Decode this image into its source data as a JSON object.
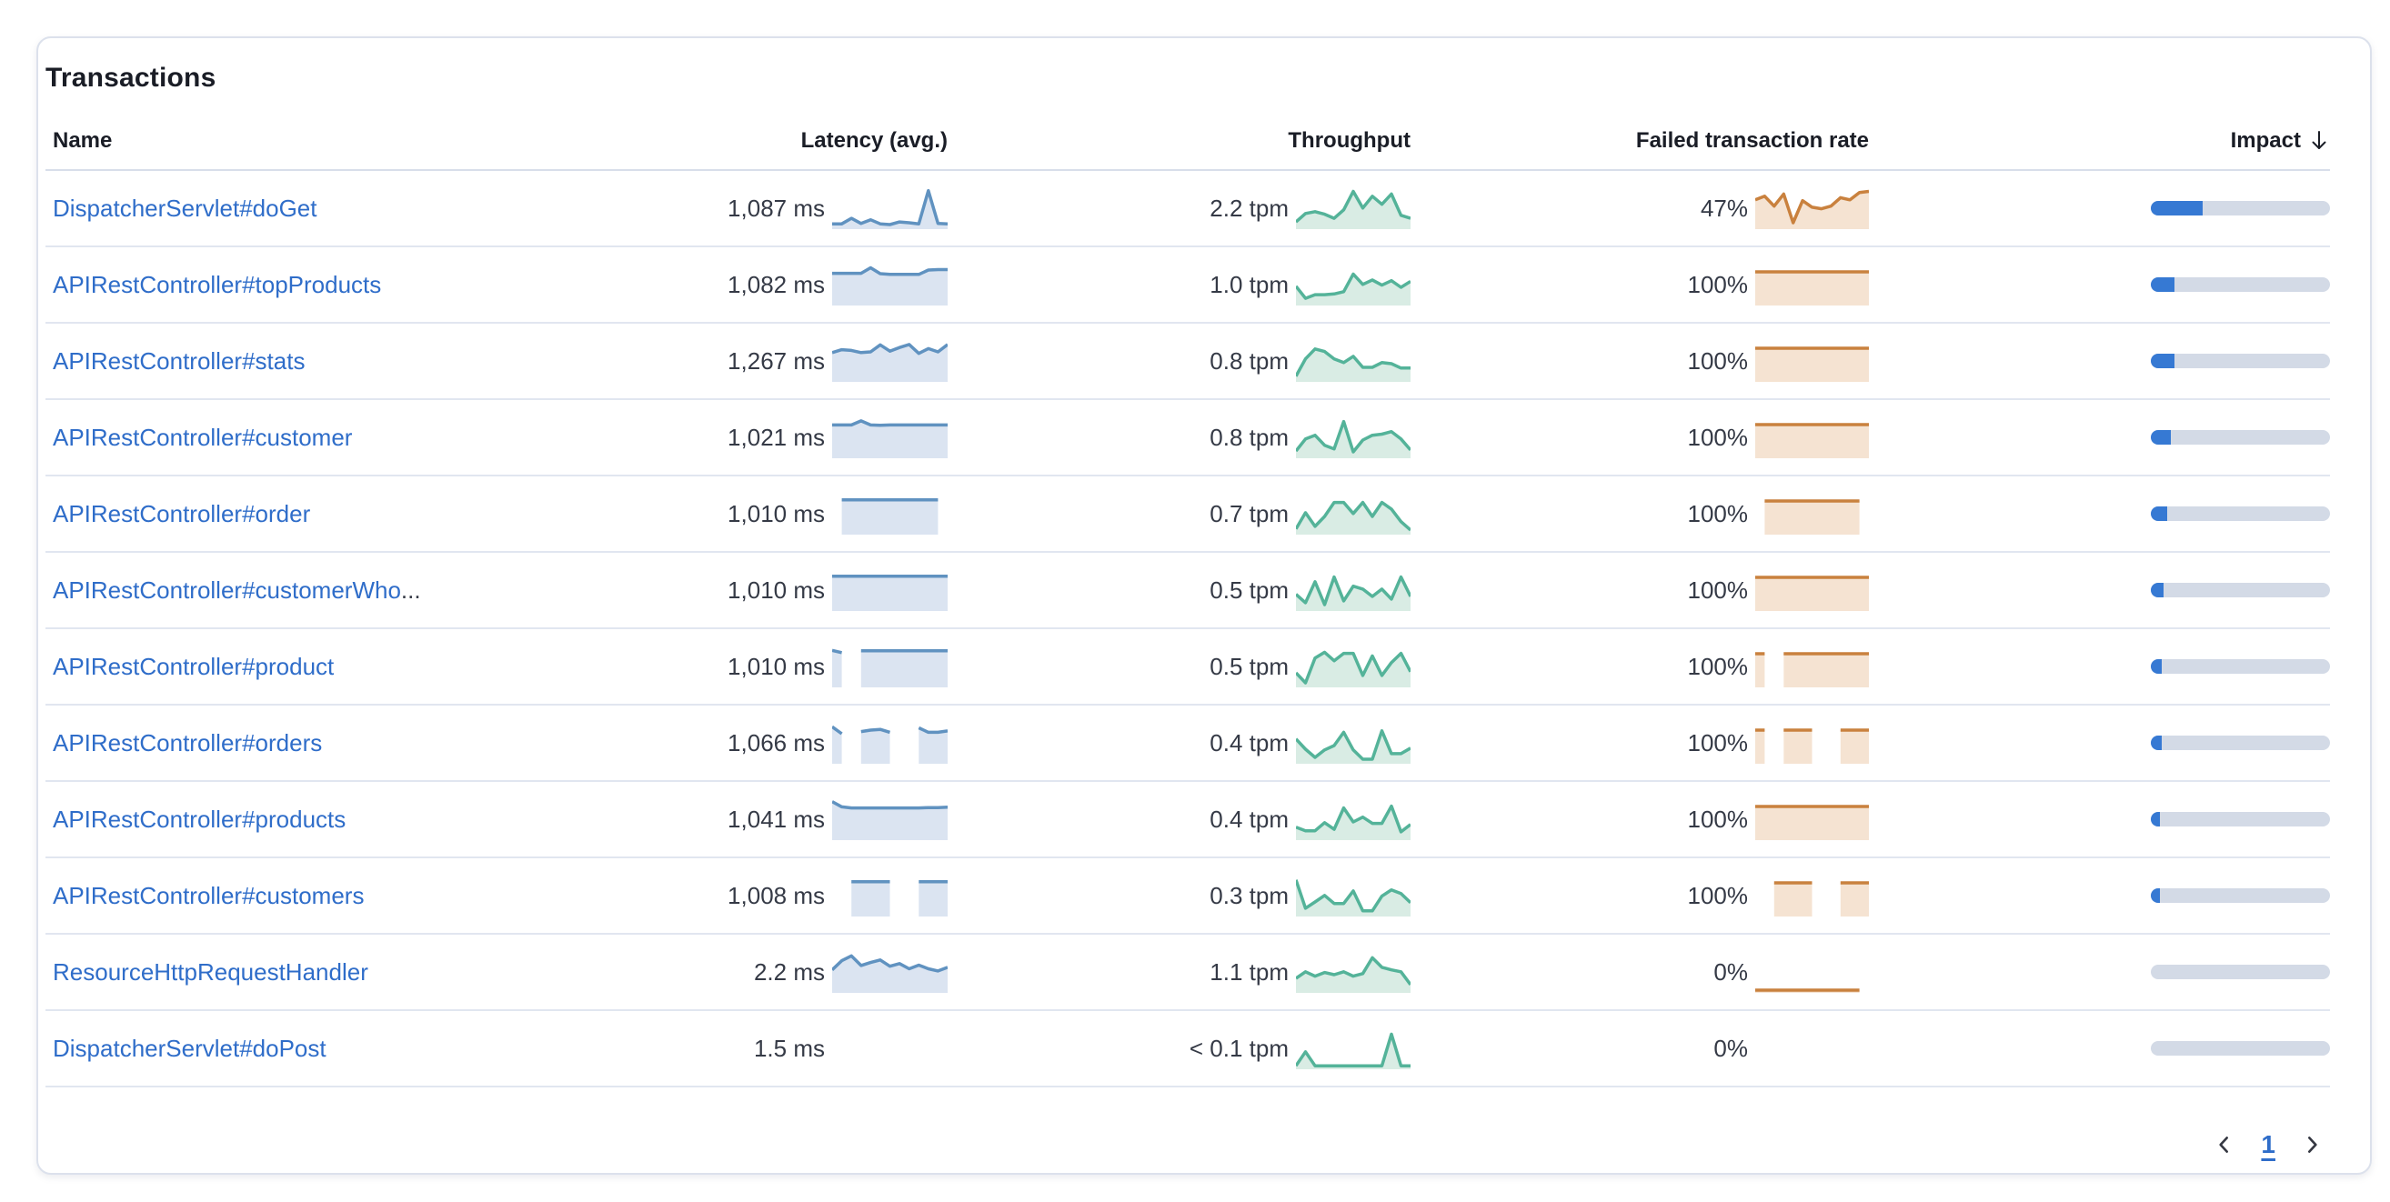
{
  "card": {
    "title": "Transactions"
  },
  "table": {
    "columns": {
      "name": "Name",
      "latency": "Latency (avg.)",
      "throughput": "Throughput",
      "failed": "Failed transaction rate",
      "impact": "Impact"
    },
    "sort": {
      "column": "impact",
      "direction": "desc"
    },
    "rows": [
      {
        "name": "DispatcherServlet#doGet",
        "truncation": "",
        "latency": "1,087 ms",
        "throughput": "2.2 tpm",
        "failed_rate": "47%",
        "impact_pct": 29,
        "latency_spark": [
          0.07,
          0.07,
          0.22,
          0.08,
          0.18,
          0.07,
          0.05,
          0.12,
          0.1,
          0.07,
          0.97,
          0.08,
          0.07
        ],
        "throughput_spark": [
          0.12,
          0.35,
          0.4,
          0.33,
          0.22,
          0.45,
          0.95,
          0.5,
          0.82,
          0.6,
          0.88,
          0.3,
          0.22
        ],
        "failed_spark": [
          0.72,
          0.82,
          0.55,
          0.88,
          0.1,
          0.7,
          0.52,
          0.48,
          0.55,
          0.78,
          0.72,
          0.92,
          0.95
        ]
      },
      {
        "name": "APIRestController#topProducts",
        "truncation": "",
        "latency": "1,082 ms",
        "throughput": "1.0 tpm",
        "failed_rate": "100%",
        "impact_pct": 13,
        "latency_spark": [
          0.8,
          0.8,
          0.8,
          0.8,
          0.95,
          0.79,
          0.77,
          0.77,
          0.77,
          0.77,
          0.89,
          0.9,
          0.9
        ],
        "throughput_spark": [
          0.45,
          0.12,
          0.22,
          0.22,
          0.24,
          0.3,
          0.78,
          0.5,
          0.62,
          0.48,
          0.6,
          0.42,
          0.58
        ],
        "failed_spark": [
          0.84,
          0.84,
          0.84,
          0.84,
          0.84,
          0.84,
          0.84,
          0.84,
          0.84,
          0.84,
          0.84,
          0.84,
          0.84
        ]
      },
      {
        "name": "APIRestController#stats",
        "truncation": "",
        "latency": "1,267 ms",
        "throughput": "0.8 tpm",
        "failed_rate": "100%",
        "impact_pct": 13,
        "latency_spark": [
          0.72,
          0.8,
          0.78,
          0.72,
          0.74,
          0.93,
          0.76,
          0.86,
          0.94,
          0.7,
          0.83,
          0.74,
          0.94
        ],
        "throughput_spark": [
          0.08,
          0.55,
          0.82,
          0.75,
          0.55,
          0.45,
          0.62,
          0.32,
          0.32,
          0.45,
          0.42,
          0.3,
          0.3
        ],
        "failed_spark": [
          0.84,
          0.84,
          0.84,
          0.84,
          0.84,
          0.84,
          0.84,
          0.84,
          0.84,
          0.84,
          0.84,
          0.84,
          0.84
        ]
      },
      {
        "name": "APIRestController#customer",
        "truncation": "",
        "latency": "1,021 ms",
        "throughput": "0.8 tpm",
        "failed_rate": "100%",
        "impact_pct": 11,
        "latency_spark": [
          0.83,
          0.83,
          0.83,
          0.94,
          0.83,
          0.82,
          0.83,
          0.83,
          0.83,
          0.83,
          0.83,
          0.83,
          0.83
        ],
        "throughput_spark": [
          0.12,
          0.45,
          0.55,
          0.28,
          0.18,
          0.92,
          0.1,
          0.42,
          0.55,
          0.58,
          0.65,
          0.45,
          0.15
        ],
        "failed_spark": [
          0.84,
          0.84,
          0.84,
          0.84,
          0.84,
          0.84,
          0.84,
          0.84,
          0.84,
          0.84,
          0.84,
          0.84,
          0.84
        ]
      },
      {
        "name": "APIRestController#order",
        "truncation": "",
        "latency": "1,010 ms",
        "throughput": "0.7 tpm",
        "failed_rate": "100%",
        "impact_pct": 9,
        "latency_spark": [
          null,
          0.87,
          0.87,
          0.87,
          0.87,
          0.87,
          0.87,
          0.87,
          0.87,
          0.87,
          0.87,
          0.87,
          null
        ],
        "throughput_spark": [
          0.08,
          0.52,
          0.15,
          0.42,
          0.8,
          0.8,
          0.5,
          0.8,
          0.42,
          0.8,
          0.62,
          0.28,
          0.05
        ],
        "failed_spark": [
          null,
          0.84,
          0.84,
          0.84,
          0.84,
          0.84,
          0.84,
          0.84,
          0.84,
          0.84,
          0.84,
          0.84,
          null
        ]
      },
      {
        "name": "APIRestController#customerWho",
        "truncation": "...",
        "latency": "1,010 ms",
        "throughput": "0.5 tpm",
        "failed_rate": "100%",
        "impact_pct": 7,
        "latency_spark": [
          0.87,
          0.87,
          0.87,
          0.87,
          0.87,
          0.87,
          0.87,
          0.87,
          0.87,
          0.87,
          0.87,
          0.87,
          0.87
        ],
        "throughput_spark": [
          0.38,
          0.15,
          0.72,
          0.1,
          0.85,
          0.2,
          0.6,
          0.52,
          0.32,
          0.52,
          0.25,
          0.85,
          0.32
        ],
        "failed_spark": [
          0.84,
          0.84,
          0.84,
          0.84,
          0.84,
          0.84,
          0.84,
          0.84,
          0.84,
          0.84,
          0.84,
          0.84,
          0.84
        ]
      },
      {
        "name": "APIRestController#product",
        "truncation": "",
        "latency": "1,010 ms",
        "throughput": "0.5 tpm",
        "failed_rate": "100%",
        "impact_pct": 6,
        "latency_spark": [
          0.93,
          0.87,
          null,
          0.92,
          0.92,
          0.92,
          0.92,
          0.92,
          0.92,
          0.92,
          0.92,
          0.92,
          0.92
        ],
        "throughput_spark": [
          0.32,
          0.05,
          0.72,
          0.88,
          0.65,
          0.85,
          0.85,
          0.25,
          0.78,
          0.25,
          0.6,
          0.85,
          0.35
        ],
        "failed_spark": [
          0.84,
          0.84,
          null,
          0.84,
          0.84,
          0.84,
          0.84,
          0.84,
          0.84,
          0.84,
          0.84,
          0.84,
          0.84
        ]
      },
      {
        "name": "APIRestController#orders",
        "truncation": "",
        "latency": "1,066 ms",
        "throughput": "0.4 tpm",
        "failed_rate": "100%",
        "impact_pct": 6,
        "latency_spark": [
          0.93,
          0.74,
          null,
          0.8,
          0.84,
          0.86,
          0.78,
          null,
          null,
          0.9,
          0.78,
          0.78,
          0.82
        ],
        "throughput_spark": [
          0.6,
          0.32,
          0.1,
          0.3,
          0.42,
          0.78,
          0.3,
          0.05,
          0.05,
          0.82,
          0.2,
          0.2,
          0.35
        ],
        "failed_spark": [
          0.84,
          0.84,
          null,
          0.84,
          0.84,
          0.84,
          0.84,
          null,
          null,
          0.84,
          0.84,
          0.84,
          0.84
        ]
      },
      {
        "name": "APIRestController#products",
        "truncation": "",
        "latency": "1,041 ms",
        "throughput": "0.4 tpm",
        "failed_rate": "100%",
        "impact_pct": 5,
        "latency_spark": [
          0.97,
          0.83,
          0.8,
          0.8,
          0.8,
          0.8,
          0.8,
          0.8,
          0.8,
          0.8,
          0.81,
          0.81,
          0.82
        ],
        "throughput_spark": [
          0.28,
          0.18,
          0.18,
          0.4,
          0.22,
          0.8,
          0.42,
          0.55,
          0.38,
          0.38,
          0.85,
          0.15,
          0.35
        ],
        "failed_spark": [
          0.84,
          0.84,
          0.84,
          0.84,
          0.84,
          0.84,
          0.84,
          0.84,
          0.84,
          0.84,
          0.84,
          0.84,
          0.84
        ]
      },
      {
        "name": "APIRestController#customers",
        "truncation": "",
        "latency": "1,008 ms",
        "throughput": "0.3 tpm",
        "failed_rate": "100%",
        "impact_pct": 5,
        "latency_spark": [
          null,
          null,
          0.87,
          0.87,
          0.87,
          0.87,
          0.87,
          null,
          null,
          0.87,
          0.87,
          0.87,
          0.87
        ],
        "throughput_spark": [
          0.92,
          0.15,
          0.32,
          0.5,
          0.28,
          0.28,
          0.62,
          0.08,
          0.08,
          0.48,
          0.65,
          0.55,
          0.3
        ],
        "failed_spark": [
          null,
          null,
          0.84,
          0.84,
          0.84,
          0.84,
          0.84,
          null,
          null,
          0.84,
          0.84,
          0.84,
          0.84
        ]
      },
      {
        "name": "ResourceHttpRequestHandler",
        "truncation": "",
        "latency": "2.2 ms",
        "throughput": "1.1 tpm",
        "failed_rate": "0%",
        "impact_pct": 0,
        "latency_spark": [
          0.55,
          0.8,
          0.93,
          0.67,
          0.75,
          0.82,
          0.65,
          0.72,
          0.58,
          0.68,
          0.58,
          0.52,
          0.62
        ],
        "throughput_spark": [
          0.32,
          0.5,
          0.38,
          0.48,
          0.42,
          0.5,
          0.38,
          0.45,
          0.88,
          0.62,
          0.55,
          0.5,
          0.15
        ],
        "failed_spark": [
          0,
          0,
          0,
          0,
          0,
          0,
          0,
          0,
          0,
          0,
          0,
          0,
          null
        ]
      },
      {
        "name": "DispatcherServlet#doPost",
        "truncation": "",
        "latency": "1.5 ms",
        "throughput": "< 0.1 tpm",
        "failed_rate": "0%",
        "impact_pct": 0,
        "latency_spark": [],
        "throughput_spark": [
          0.02,
          0.4,
          0.02,
          0.02,
          0.02,
          0.02,
          0.02,
          0.02,
          0.02,
          0.02,
          0.88,
          0.02,
          0.02
        ],
        "failed_spark": []
      }
    ]
  },
  "pagination": {
    "current_page": "1"
  },
  "colors": {
    "link": "#2f6dc9",
    "latency_line": "#6092c0",
    "latency_fill": "#dbe4f1",
    "throughput_line": "#54b399",
    "throughput_fill": "#d9ece4",
    "failed_line": "#c9813e",
    "failed_fill": "#f5e3d2",
    "impact_fill": "#3679d3",
    "impact_track": "#d3dae6"
  }
}
